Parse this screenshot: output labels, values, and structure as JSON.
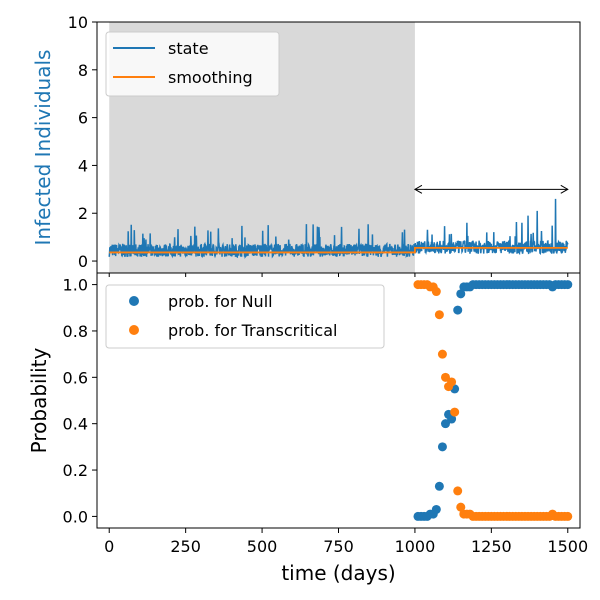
{
  "chart_data": [
    {
      "type": "line",
      "ylabel": "Infected Individuals",
      "ylabel_color": "#1f77b4",
      "xlim": [
        -40,
        1540
      ],
      "ylim": [
        -0.5,
        10
      ],
      "yticks": [
        0,
        2,
        4,
        6,
        8,
        10
      ],
      "ytick_labels": [
        "0",
        "2",
        "4",
        "6",
        "8",
        "10"
      ],
      "legend_placement": "upper-left",
      "shaded_region": {
        "x": [
          0,
          1000
        ],
        "color": "#d9d9d9"
      },
      "arrow": {
        "x": [
          1000,
          1500
        ],
        "y": 3
      },
      "series": [
        {
          "name": "state",
          "color": "#1f77b4",
          "description_values": {
            "baseline_mean": 0.5,
            "min": 0.15,
            "max": 2.6,
            "x_range": [
              0,
              1500
            ]
          },
          "peaks": [
            [
              520,
              1.5
            ],
            [
              1170,
              1.6
            ],
            [
              1350,
              1.6
            ],
            [
              1370,
              1.9
            ],
            [
              1400,
              2.1
            ],
            [
              1460,
              2.6
            ]
          ]
        },
        {
          "name": "smoothing",
          "color": "#ff7f0e",
          "points": [
            [
              0,
              0.36
            ],
            [
              1000,
              0.36
            ],
            [
              1000,
              0.55
            ],
            [
              1500,
              0.55
            ]
          ]
        }
      ]
    },
    {
      "type": "scatter",
      "ylabel": "Probability",
      "xlabel": "time (days)",
      "xlim": [
        -40,
        1540
      ],
      "ylim": [
        -0.05,
        1.05
      ],
      "xticks": [
        0,
        250,
        500,
        750,
        1000,
        1250,
        1500
      ],
      "xtick_labels": [
        "0",
        "250",
        "500",
        "750",
        "1000",
        "1250",
        "1500"
      ],
      "yticks": [
        0.0,
        0.2,
        0.4,
        0.6,
        0.8,
        1.0
      ],
      "ytick_labels": [
        "0.0",
        "0.2",
        "0.4",
        "0.6",
        "0.8",
        "1.0"
      ],
      "legend_placement": "upper-left",
      "series": [
        {
          "name": "prob. for Null",
          "color": "#1f77b4",
          "points": [
            [
              1010,
              0.0
            ],
            [
              1020,
              0.0
            ],
            [
              1030,
              0.0
            ],
            [
              1040,
              0.0
            ],
            [
              1050,
              0.01
            ],
            [
              1060,
              0.01
            ],
            [
              1070,
              0.03
            ],
            [
              1080,
              0.13
            ],
            [
              1090,
              0.3
            ],
            [
              1100,
              0.4
            ],
            [
              1110,
              0.44
            ],
            [
              1120,
              0.42
            ],
            [
              1130,
              0.55
            ],
            [
              1140,
              0.89
            ],
            [
              1150,
              0.96
            ],
            [
              1160,
              0.99
            ],
            [
              1170,
              0.99
            ],
            [
              1180,
              0.99
            ],
            [
              1190,
              1.0
            ],
            [
              1200,
              1.0
            ],
            [
              1210,
              1.0
            ],
            [
              1220,
              1.0
            ],
            [
              1230,
              1.0
            ],
            [
              1240,
              1.0
            ],
            [
              1250,
              1.0
            ],
            [
              1260,
              1.0
            ],
            [
              1270,
              1.0
            ],
            [
              1280,
              1.0
            ],
            [
              1290,
              1.0
            ],
            [
              1300,
              1.0
            ],
            [
              1310,
              1.0
            ],
            [
              1320,
              1.0
            ],
            [
              1330,
              1.0
            ],
            [
              1340,
              1.0
            ],
            [
              1350,
              1.0
            ],
            [
              1360,
              1.0
            ],
            [
              1370,
              1.0
            ],
            [
              1380,
              1.0
            ],
            [
              1390,
              1.0
            ],
            [
              1400,
              1.0
            ],
            [
              1410,
              1.0
            ],
            [
              1420,
              1.0
            ],
            [
              1430,
              1.0
            ],
            [
              1440,
              1.0
            ],
            [
              1450,
              0.99
            ],
            [
              1460,
              1.0
            ],
            [
              1470,
              1.0
            ],
            [
              1480,
              1.0
            ],
            [
              1490,
              1.0
            ],
            [
              1500,
              1.0
            ]
          ]
        },
        {
          "name": "prob. for Transcritical",
          "color": "#ff7f0e",
          "points": [
            [
              1010,
              1.0
            ],
            [
              1020,
              1.0
            ],
            [
              1030,
              1.0
            ],
            [
              1040,
              1.0
            ],
            [
              1050,
              0.99
            ],
            [
              1060,
              0.99
            ],
            [
              1070,
              0.97
            ],
            [
              1080,
              0.87
            ],
            [
              1090,
              0.7
            ],
            [
              1100,
              0.6
            ],
            [
              1110,
              0.56
            ],
            [
              1120,
              0.58
            ],
            [
              1130,
              0.45
            ],
            [
              1140,
              0.11
            ],
            [
              1150,
              0.04
            ],
            [
              1160,
              0.01
            ],
            [
              1170,
              0.01
            ],
            [
              1180,
              0.01
            ],
            [
              1190,
              0.0
            ],
            [
              1200,
              0.0
            ],
            [
              1210,
              0.0
            ],
            [
              1220,
              0.0
            ],
            [
              1230,
              0.0
            ],
            [
              1240,
              0.0
            ],
            [
              1250,
              0.0
            ],
            [
              1260,
              0.0
            ],
            [
              1270,
              0.0
            ],
            [
              1280,
              0.0
            ],
            [
              1290,
              0.0
            ],
            [
              1300,
              0.0
            ],
            [
              1310,
              0.0
            ],
            [
              1320,
              0.0
            ],
            [
              1330,
              0.0
            ],
            [
              1340,
              0.0
            ],
            [
              1350,
              0.0
            ],
            [
              1360,
              0.0
            ],
            [
              1370,
              0.0
            ],
            [
              1380,
              0.0
            ],
            [
              1390,
              0.0
            ],
            [
              1400,
              0.0
            ],
            [
              1410,
              0.0
            ],
            [
              1420,
              0.0
            ],
            [
              1430,
              0.0
            ],
            [
              1440,
              0.0
            ],
            [
              1450,
              0.01
            ],
            [
              1460,
              0.0
            ],
            [
              1470,
              0.0
            ],
            [
              1480,
              0.0
            ],
            [
              1490,
              0.0
            ],
            [
              1500,
              0.0
            ]
          ]
        }
      ]
    }
  ]
}
